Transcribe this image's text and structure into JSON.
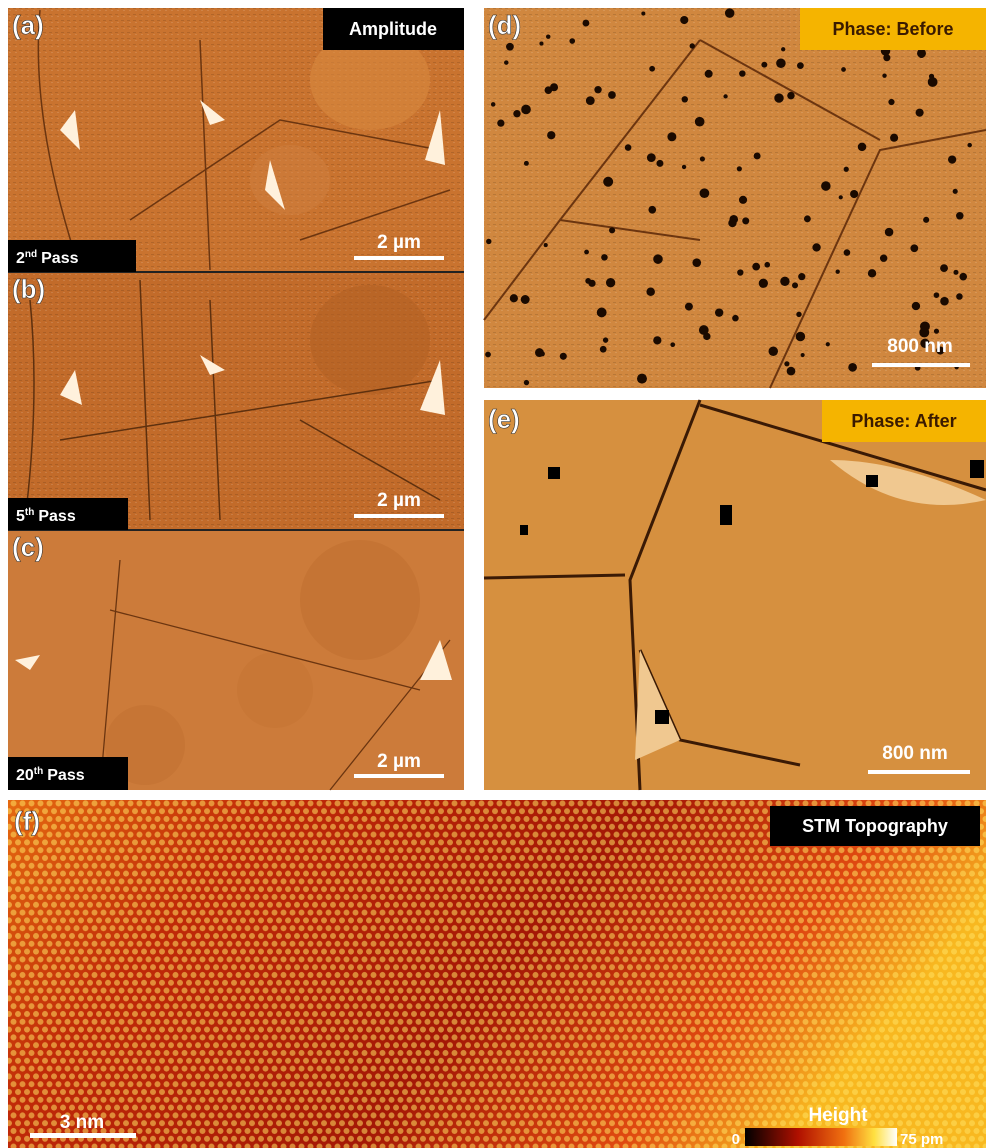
{
  "panels": {
    "a": {
      "label": "(a)",
      "tag": "Amplitude",
      "pass": {
        "num": "2",
        "sup": "nd",
        "word": "Pass"
      },
      "scale_bar": "2 µm"
    },
    "b": {
      "label": "(b)",
      "pass": {
        "num": "5",
        "sup": "th",
        "word": "Pass"
      },
      "scale_bar": "2 µm"
    },
    "c": {
      "label": "(c)",
      "pass": {
        "num": "20",
        "sup": "th",
        "word": "Pass"
      },
      "scale_bar": "2 µm"
    },
    "d": {
      "label": "(d)",
      "tag": "Phase: Before",
      "scale_bar": "800 nm"
    },
    "e": {
      "label": "(e)",
      "tag": "Phase: After",
      "scale_bar": "800 nm"
    },
    "f": {
      "label": "(f)",
      "tag": "STM Topography",
      "scale_bar": "3 nm",
      "colorbar": {
        "title": "Height",
        "min_label": "0",
        "max_label": "75 pm"
      }
    }
  }
}
